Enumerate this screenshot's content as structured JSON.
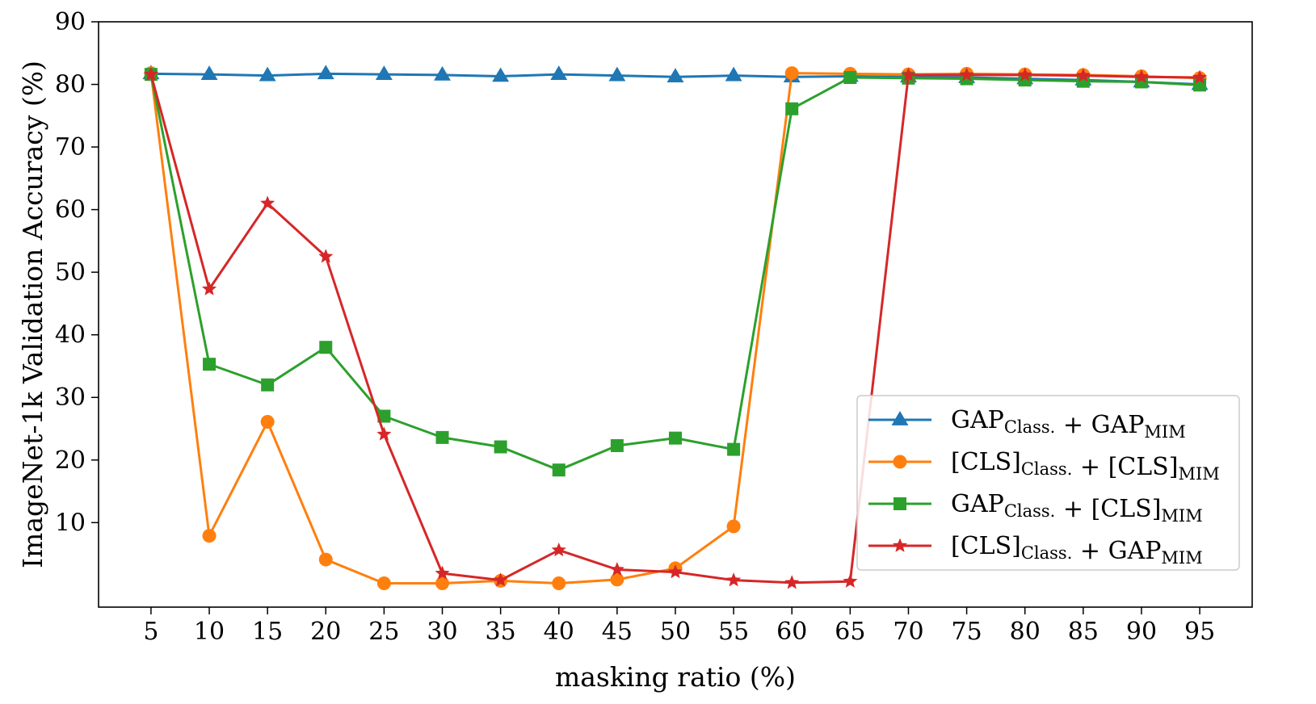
{
  "chart_data": {
    "type": "line",
    "title": "",
    "xlabel": "masking ratio (%)",
    "ylabel": "ImageNet-1k Validation Accuracy (%)",
    "x": [
      5,
      10,
      15,
      20,
      25,
      30,
      35,
      40,
      45,
      50,
      55,
      60,
      65,
      70,
      75,
      80,
      85,
      90,
      95
    ],
    "xlim": [
      0.5,
      99.5
    ],
    "ylim": [
      -3.5,
      90
    ],
    "yticks": [
      10,
      20,
      30,
      40,
      50,
      60,
      70,
      80,
      90
    ],
    "grid": false,
    "legend_position": "lower-right",
    "series": [
      {
        "name": "GAP_Class. + GAP_MIM",
        "label_parts": [
          {
            "text": "GAP",
            "sub": "Class."
          },
          {
            "text": " + GAP",
            "sub": "MIM"
          }
        ],
        "color": "#1f77b4",
        "marker": "triangle",
        "values": [
          81.7,
          81.6,
          81.4,
          81.7,
          81.6,
          81.5,
          81.3,
          81.6,
          81.4,
          81.2,
          81.4,
          81.2,
          81.3,
          81.2,
          81.1,
          80.9,
          80.7,
          80.4,
          80.0
        ]
      },
      {
        "name": "[CLS]_Class. + [CLS]_MIM",
        "label_parts": [
          {
            "text": "[CLS]",
            "sub": "Class."
          },
          {
            "text": " + [CLS]",
            "sub": "MIM"
          }
        ],
        "color": "#ff7f0e",
        "marker": "circle",
        "values": [
          81.8,
          7.9,
          26.1,
          4.1,
          0.3,
          0.3,
          0.7,
          0.3,
          0.9,
          2.7,
          9.4,
          81.8,
          81.7,
          81.6,
          81.7,
          81.6,
          81.5,
          81.3,
          81.0
        ]
      },
      {
        "name": "GAP_Class. + [CLS]_MIM",
        "label_parts": [
          {
            "text": "GAP",
            "sub": "Class."
          },
          {
            "text": " + [CLS]",
            "sub": "MIM"
          }
        ],
        "color": "#2ca02c",
        "marker": "square",
        "values": [
          81.6,
          35.3,
          32.0,
          38.0,
          27.0,
          23.6,
          22.1,
          18.4,
          22.3,
          23.5,
          21.7,
          76.1,
          81.1,
          81.0,
          80.9,
          80.7,
          80.5,
          80.4,
          79.9
        ]
      },
      {
        "name": "[CLS]_Class. + GAP_MIM",
        "label_parts": [
          {
            "text": "[CLS]",
            "sub": "Class."
          },
          {
            "text": " + GAP",
            "sub": "MIM"
          }
        ],
        "color": "#d62728",
        "marker": "star",
        "values": [
          81.6,
          47.3,
          61.0,
          52.5,
          24.1,
          1.9,
          0.8,
          5.6,
          2.5,
          2.1,
          0.8,
          0.4,
          0.6,
          81.5,
          81.5,
          81.5,
          81.4,
          81.2,
          81.1
        ]
      }
    ]
  }
}
